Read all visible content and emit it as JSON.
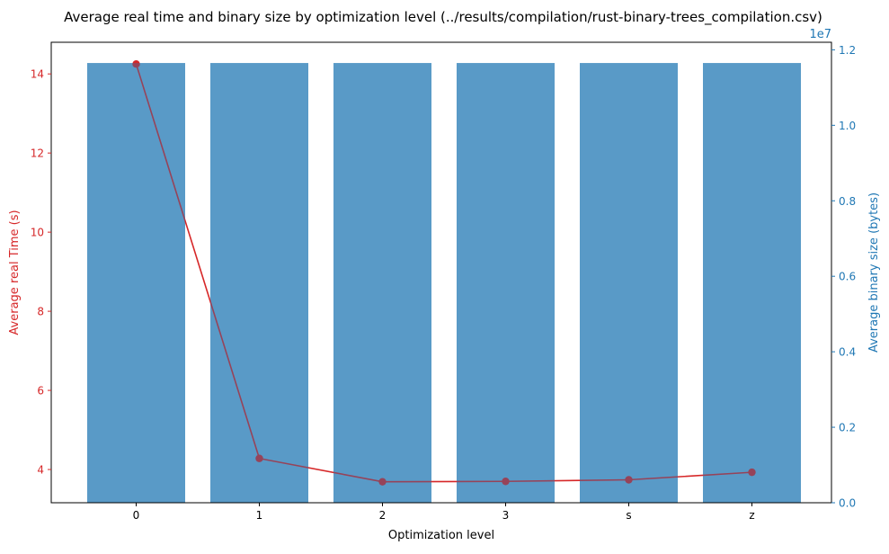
{
  "chart_data": {
    "type": "bar+line",
    "title": "Average real time and binary size by optimization level (../results/compilation/rust-binary-trees_compilation.csv)",
    "xlabel": "Optimization level",
    "ylabel_left": "Average real Time (s)",
    "ylabel_right": "Average binary size (bytes)",
    "right_offset_label": "1e7",
    "categories": [
      "0",
      "1",
      "2",
      "3",
      "s",
      "z"
    ],
    "ylim_left": [
      3.16,
      14.8
    ],
    "ylim_right": [
      0,
      12200000
    ],
    "yticks_left": [
      4,
      6,
      8,
      10,
      12,
      14
    ],
    "yticks_right": [
      0,
      2000000,
      4000000,
      6000000,
      8000000,
      10000000,
      12000000
    ],
    "ytick_labels_right": [
      "0.0",
      "0.2",
      "0.4",
      "0.6",
      "0.8",
      "1.0",
      "1.2"
    ],
    "series": [
      {
        "name": "Average binary size (bytes)",
        "kind": "bar",
        "axis": "right",
        "color": "#1f77b4",
        "values": [
          11650000,
          11650000,
          11650000,
          11650000,
          11650000,
          11650000
        ]
      },
      {
        "name": "Average real Time (s)",
        "kind": "line",
        "axis": "left",
        "color": "#d62728",
        "values": [
          14.25,
          4.28,
          3.69,
          3.7,
          3.74,
          3.93
        ]
      }
    ],
    "grid": false,
    "legend": "none"
  }
}
